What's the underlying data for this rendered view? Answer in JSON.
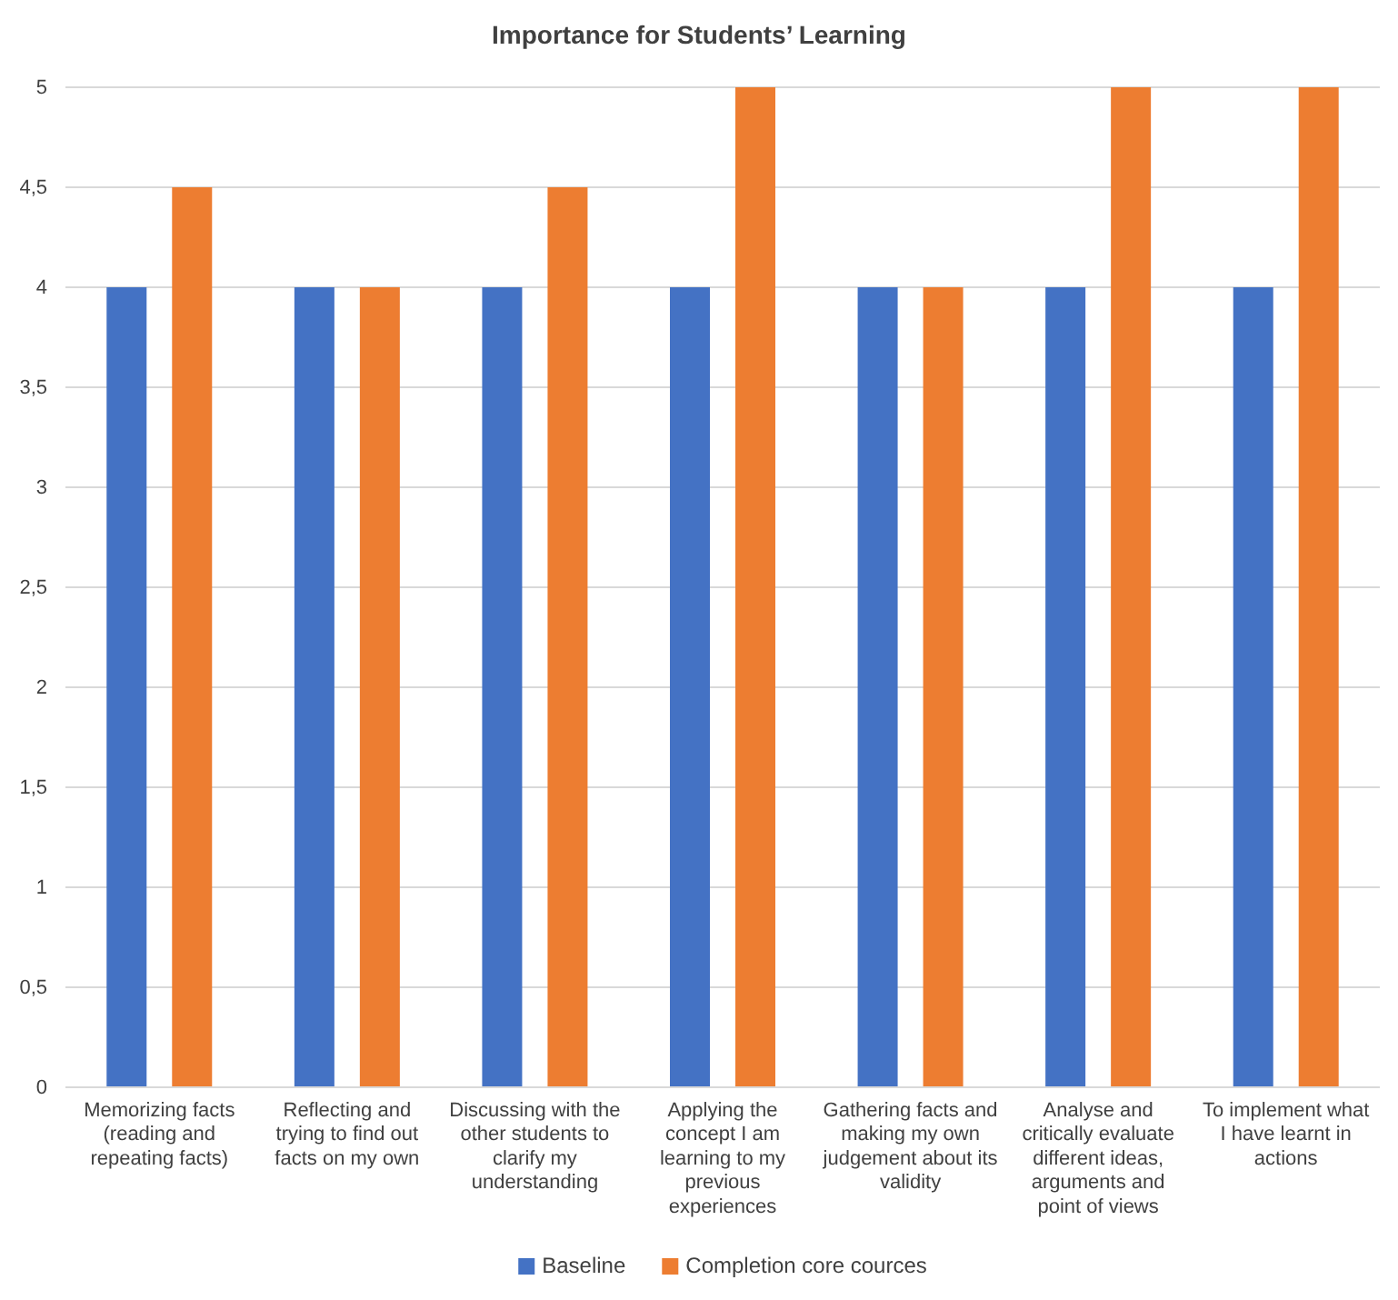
{
  "chart_data": {
    "type": "bar",
    "title": "Importance for Students’ Learning",
    "categories": [
      "Memorizing facts (reading and repeating facts)",
      "Reflecting and trying to find out facts on my own",
      "Discussing with the other students to clarify my understanding",
      "Applying the concept I am learning to my previous experiences",
      "Gathering facts and making my own judgement about its validity",
      "Analyse and critically evaluate different ideas, arguments and point of views",
      "To implement what I have learnt in actions"
    ],
    "series": [
      {
        "name": "Baseline",
        "color": "#4472c4",
        "values": [
          4,
          4,
          4,
          4,
          4,
          4,
          4
        ]
      },
      {
        "name": "Completion core cources",
        "color": "#ed7d31",
        "values": [
          4.5,
          4,
          4.5,
          5,
          4,
          5,
          5
        ]
      }
    ],
    "ylim": [
      0,
      5
    ],
    "yticks": [
      0,
      {
        "value": 0.5,
        "label": "0,5"
      },
      1,
      {
        "value": 1.5,
        "label": "1,5"
      },
      2,
      {
        "value": 2.5,
        "label": "2,5"
      },
      3,
      {
        "value": 3.5,
        "label": "3,5"
      },
      4,
      {
        "value": 4.5,
        "label": "4,5"
      },
      5
    ],
    "grid": "y",
    "legend": "bottom"
  }
}
